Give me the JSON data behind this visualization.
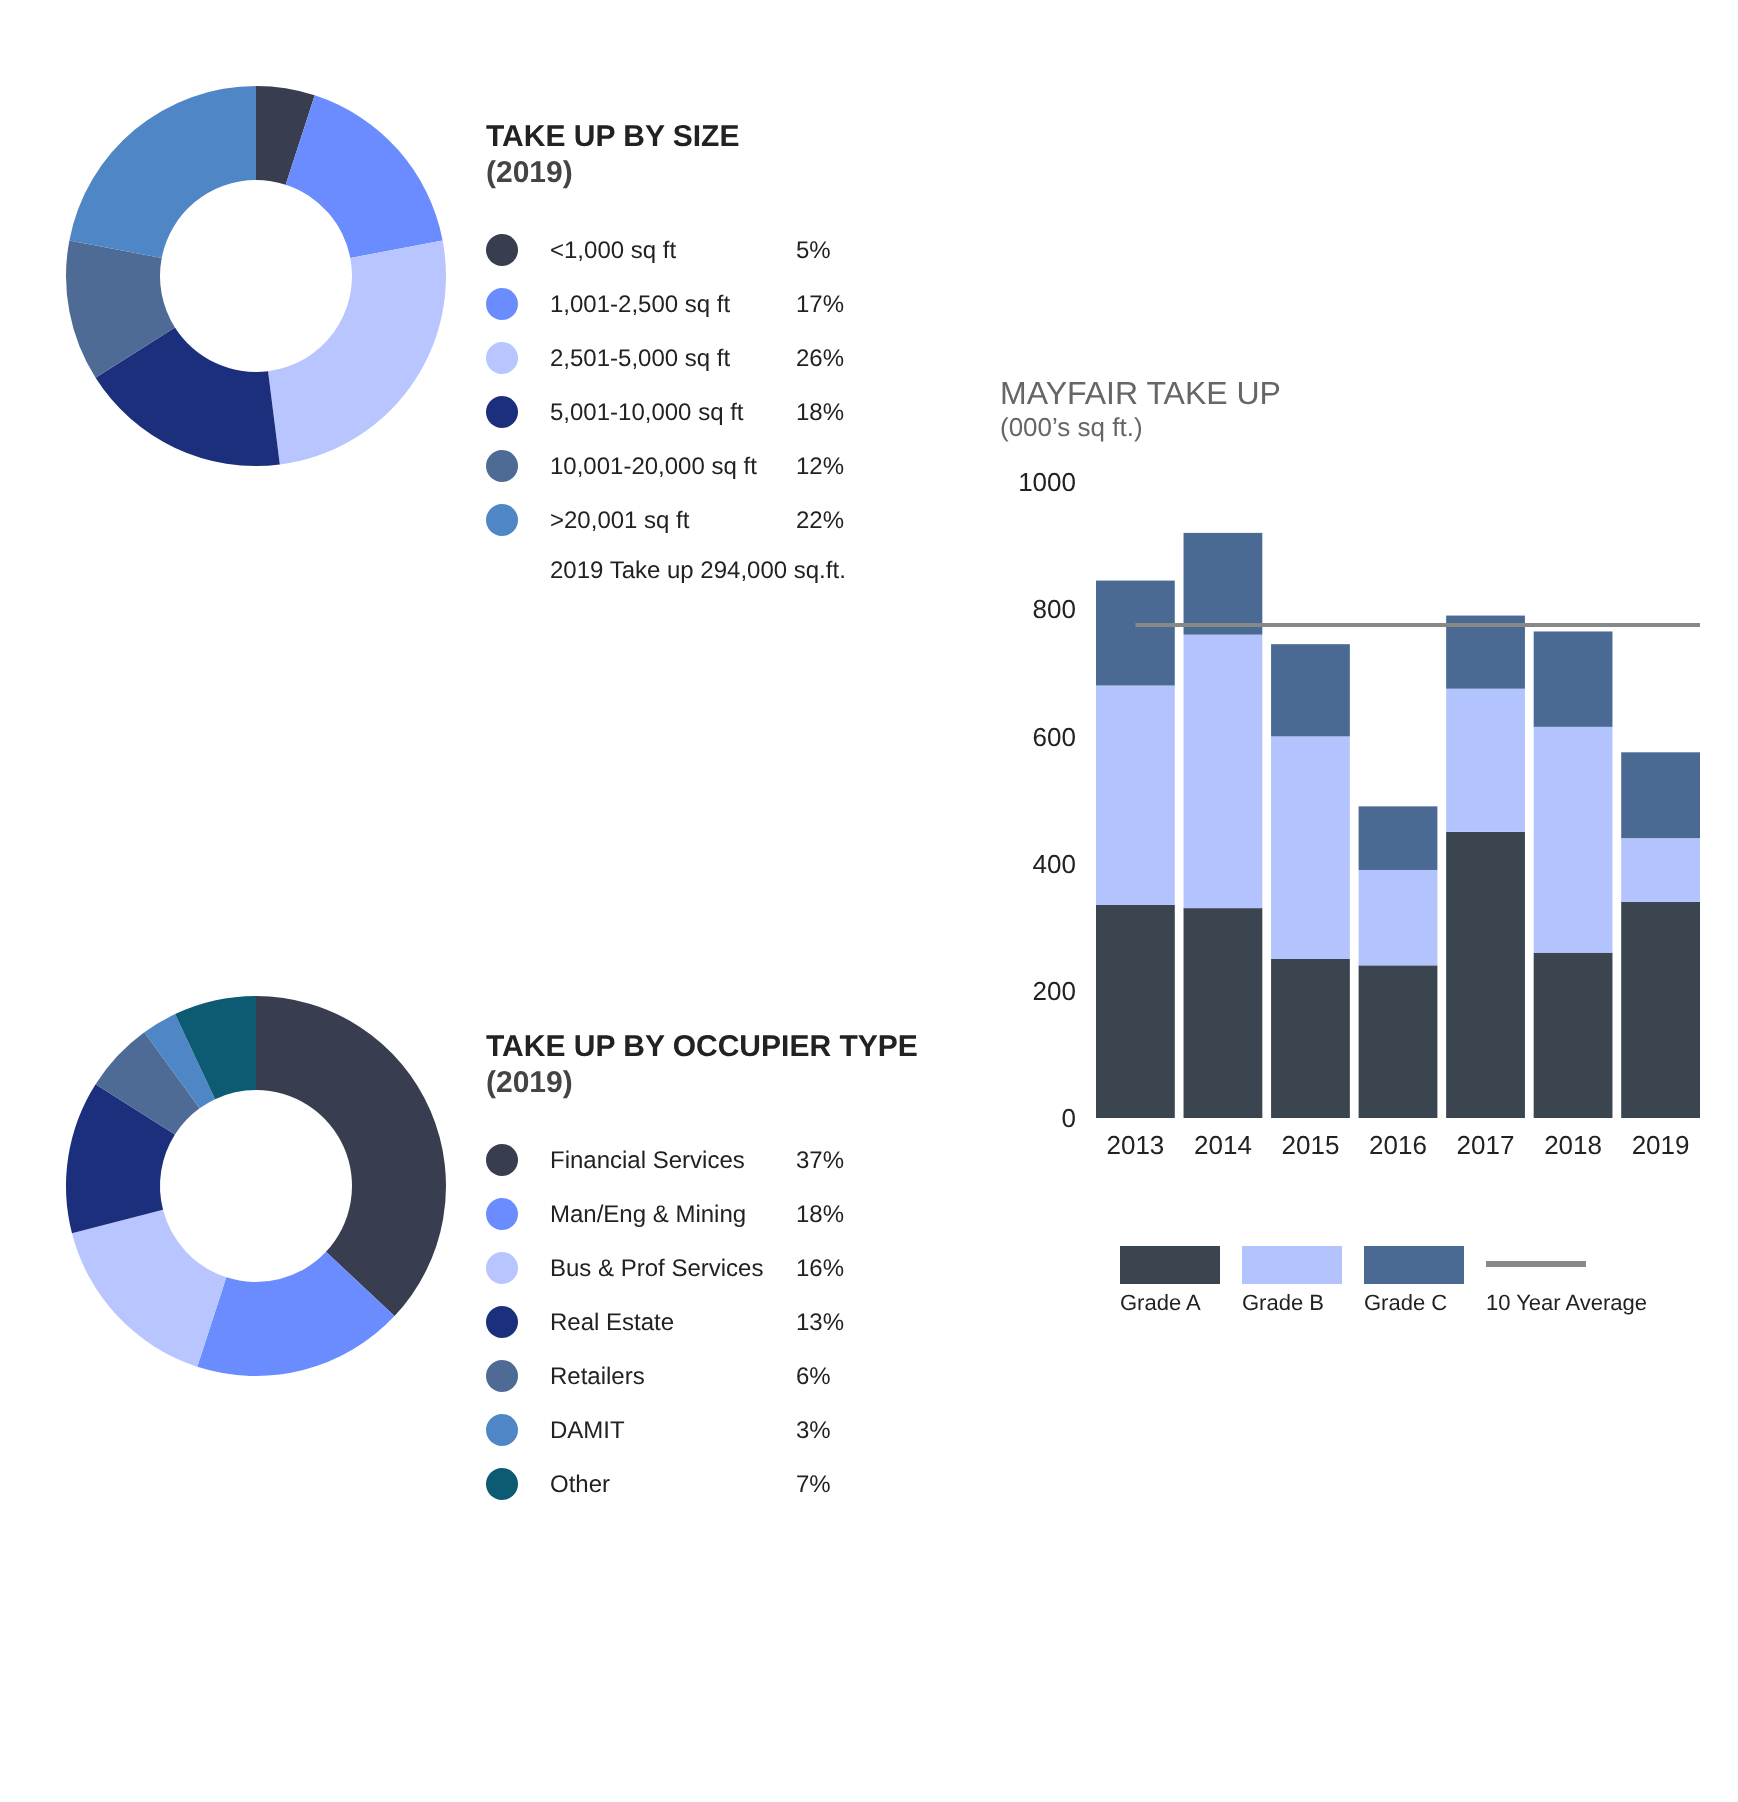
{
  "chart_data": [
    {
      "type": "donut",
      "title": "TAKE UP BY SIZE",
      "subtitle": "(2019)",
      "categories": [
        "<1,000 sq ft",
        "1,001-2,500 sq ft",
        "2,501-5,000 sq ft",
        "5,001-10,000 sq ft",
        "10,001-20,000 sq ft",
        ">20,001 sq ft"
      ],
      "values": [
        5,
        17,
        26,
        18,
        12,
        22
      ],
      "value_labels": [
        "5%",
        "17%",
        "26%",
        "18%",
        "12%",
        "22%"
      ],
      "colors": [
        "#383d4f",
        "#6a8cff",
        "#b8c5ff",
        "#1c2f7c",
        "#4e6b95",
        "#4f86c6"
      ],
      "legend": "right",
      "annotations": [
        "2019 Take up 294,000 sq.ft."
      ]
    },
    {
      "type": "bar",
      "title": "MAYFAIR TAKE UP",
      "subtitle": "(000’s sq ft.)",
      "categories": [
        "2013",
        "2014",
        "2015",
        "2016",
        "2017",
        "2018",
        "2019"
      ],
      "stacked": true,
      "series": [
        {
          "name": "Grade A",
          "color": "#3a4550",
          "values": [
            335,
            330,
            250,
            240,
            450,
            260,
            340
          ]
        },
        {
          "name": "Grade B",
          "color": "#b3c3fe",
          "values": [
            345,
            430,
            350,
            150,
            225,
            355,
            100
          ]
        },
        {
          "name": "Grade C",
          "color": "#4a6a93",
          "values": [
            165,
            160,
            145,
            100,
            115,
            150,
            135
          ]
        }
      ],
      "ylim": [
        0,
        1000
      ],
      "yticks": [
        0,
        200,
        400,
        600,
        800,
        1000
      ],
      "grid": false,
      "legend": "bottom",
      "ref_lines": [
        {
          "axis": "y",
          "value": 775,
          "label": "10 Year Average",
          "color": "#888888"
        }
      ]
    },
    {
      "type": "donut",
      "title": "TAKE UP BY OCCUPIER TYPE",
      "subtitle": "(2019)",
      "categories": [
        "Financial Services",
        "Man/Eng & Mining",
        "Bus & Prof Services",
        "Real Estate",
        "Retailers",
        "DAMIT",
        "Other"
      ],
      "values": [
        37,
        18,
        16,
        13,
        6,
        3,
        7
      ],
      "value_labels": [
        "37%",
        "18%",
        "16%",
        "13%",
        "6%",
        "3%",
        "7%"
      ],
      "colors": [
        "#383d4f",
        "#6a8cff",
        "#b8c5ff",
        "#1c2f7c",
        "#4e6b95",
        "#4f86c6",
        "#0d5a73"
      ],
      "legend": "right"
    }
  ]
}
